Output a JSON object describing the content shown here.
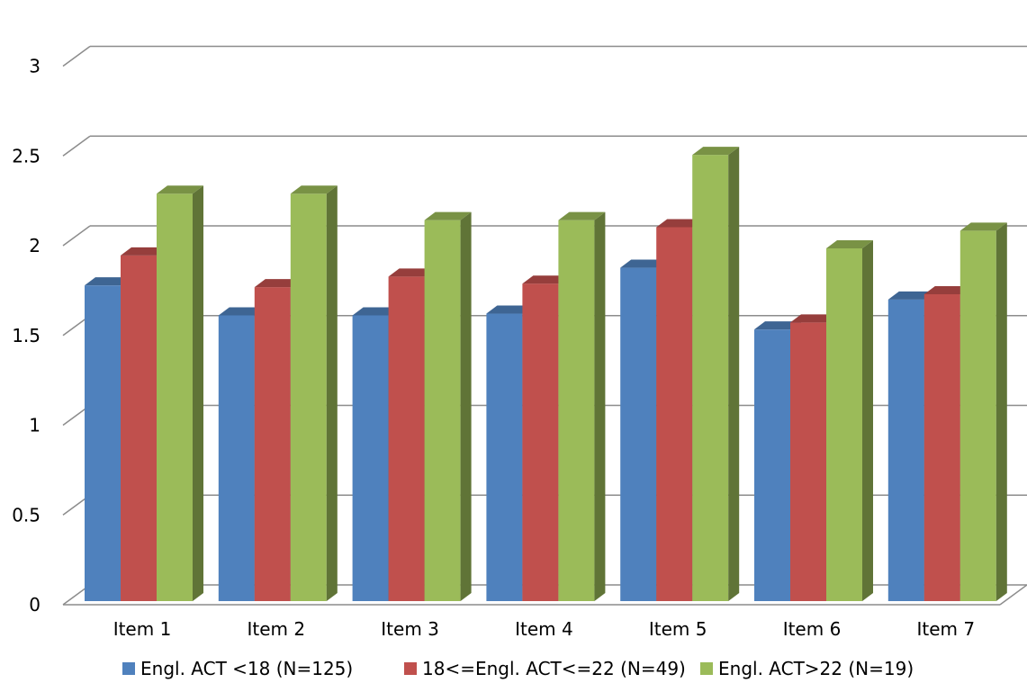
{
  "chart_data": {
    "type": "bar",
    "title": "",
    "xlabel": "",
    "ylabel": "",
    "ylim": [
      0,
      3
    ],
    "yticks": [
      "0",
      "0.5",
      "1",
      "1.5",
      "2",
      "2.5",
      "3"
    ],
    "categories": [
      "Item 1",
      "Item 2",
      "Item 3",
      "Item 4",
      "Item 5",
      "Item 6",
      "Item 7"
    ],
    "series": [
      {
        "name": "Engl. ACT <18 (N=125)",
        "values": [
          1.79,
          1.62,
          1.62,
          1.63,
          1.89,
          1.54,
          1.71
        ],
        "color": "#4F81BD"
      },
      {
        "name": "18<=Engl. ACT<=22 (N=49)",
        "values": [
          1.96,
          1.78,
          1.84,
          1.8,
          2.12,
          1.58,
          1.74
        ],
        "color": "#C0504D"
      },
      {
        "name": "Engl. ACT>22 (N=19)",
        "values": [
          2.31,
          2.31,
          2.16,
          2.16,
          2.53,
          2.0,
          2.1
        ],
        "color": "#9BBB59"
      }
    ],
    "grid": true,
    "legend": "bottom",
    "style": "3d-column"
  }
}
